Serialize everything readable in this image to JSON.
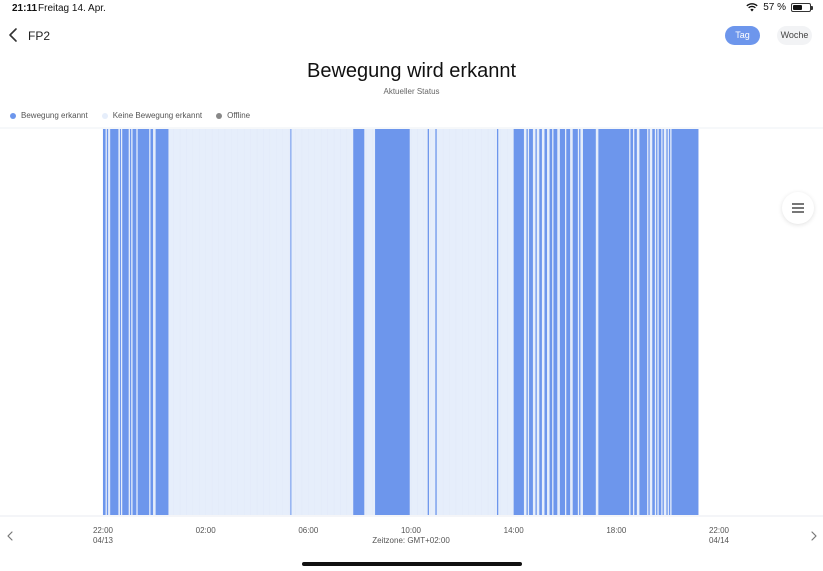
{
  "status_bar": {
    "time": "21:11",
    "date": "Freitag 14. Apr.",
    "battery_text": "57 %",
    "battery_level": 0.57,
    "icons": [
      "wifi-icon",
      "battery-icon"
    ]
  },
  "header": {
    "device_name": "FP2",
    "back_icon": "chevron-left-icon",
    "segments": [
      {
        "label": "Tag",
        "selected": true
      },
      {
        "label": "Woche",
        "selected": false
      }
    ]
  },
  "status": {
    "title": "Bewegung wird erkannt",
    "subtitle": "Aktueller Status"
  },
  "legend": [
    {
      "label": "Bewegung erkannt",
      "color": "#6d96ec"
    },
    {
      "label": "Keine Bewegung erkannt",
      "color": "#e6eefb"
    },
    {
      "label": "Offline",
      "color": "#888888"
    }
  ],
  "menu_icon": "menu-icon",
  "navigation": {
    "prev_icon": "chevron-left-icon",
    "next_icon": "chevron-right-icon"
  },
  "colors": {
    "motion": "#6d96ec",
    "no_motion": "#e6eefb",
    "grid": "#f0f3fa",
    "accent": "#6d96ec"
  },
  "chart_data": {
    "type": "timeline",
    "x_unit": "hours since 22:00 04/13",
    "x_range": [
      0,
      24
    ],
    "x_ticks": [
      {
        "value": 0,
        "label": "22:00",
        "sublabel": "04/13"
      },
      {
        "value": 4,
        "label": "02:00",
        "sublabel": ""
      },
      {
        "value": 8,
        "label": "06:00",
        "sublabel": ""
      },
      {
        "value": 12,
        "label": "10:00",
        "sublabel": ""
      },
      {
        "value": 16,
        "label": "14:00",
        "sublabel": ""
      },
      {
        "value": 20,
        "label": "18:00",
        "sublabel": ""
      },
      {
        "value": 24,
        "label": "22:00",
        "sublabel": "04/14"
      }
    ],
    "timezone": "Zeitzone: GMT+02:00",
    "data_end": 23.2,
    "series": [
      {
        "name": "Bewegung erkannt",
        "intervals": [
          [
            0.0,
            0.1
          ],
          [
            0.15,
            0.2
          ],
          [
            0.28,
            0.6
          ],
          [
            0.66,
            0.7
          ],
          [
            0.75,
            1.0
          ],
          [
            1.05,
            1.1
          ],
          [
            1.15,
            1.3
          ],
          [
            1.35,
            1.8
          ],
          [
            1.85,
            1.95
          ],
          [
            2.05,
            2.55
          ],
          [
            7.3,
            7.34
          ],
          [
            9.75,
            10.18
          ],
          [
            10.6,
            11.95
          ],
          [
            12.65,
            12.7
          ],
          [
            12.95,
            13.0
          ],
          [
            15.35,
            15.4
          ],
          [
            16.0,
            16.4
          ],
          [
            16.5,
            16.55
          ],
          [
            16.6,
            16.75
          ],
          [
            16.85,
            16.9
          ],
          [
            17.0,
            17.1
          ],
          [
            17.2,
            17.3
          ],
          [
            17.4,
            17.5
          ],
          [
            17.55,
            17.7
          ],
          [
            17.8,
            18.0
          ],
          [
            18.05,
            18.2
          ],
          [
            18.3,
            18.5
          ],
          [
            18.55,
            18.6
          ],
          [
            18.7,
            19.2
          ],
          [
            19.3,
            20.5
          ],
          [
            20.55,
            20.65
          ],
          [
            20.7,
            20.8
          ],
          [
            20.9,
            21.2
          ],
          [
            21.25,
            21.3
          ],
          [
            21.4,
            21.5
          ],
          [
            21.55,
            21.6
          ],
          [
            21.65,
            21.75
          ],
          [
            21.8,
            21.85
          ],
          [
            21.95,
            22.0
          ],
          [
            22.05,
            22.1
          ],
          [
            22.15,
            23.2
          ]
        ]
      }
    ]
  }
}
